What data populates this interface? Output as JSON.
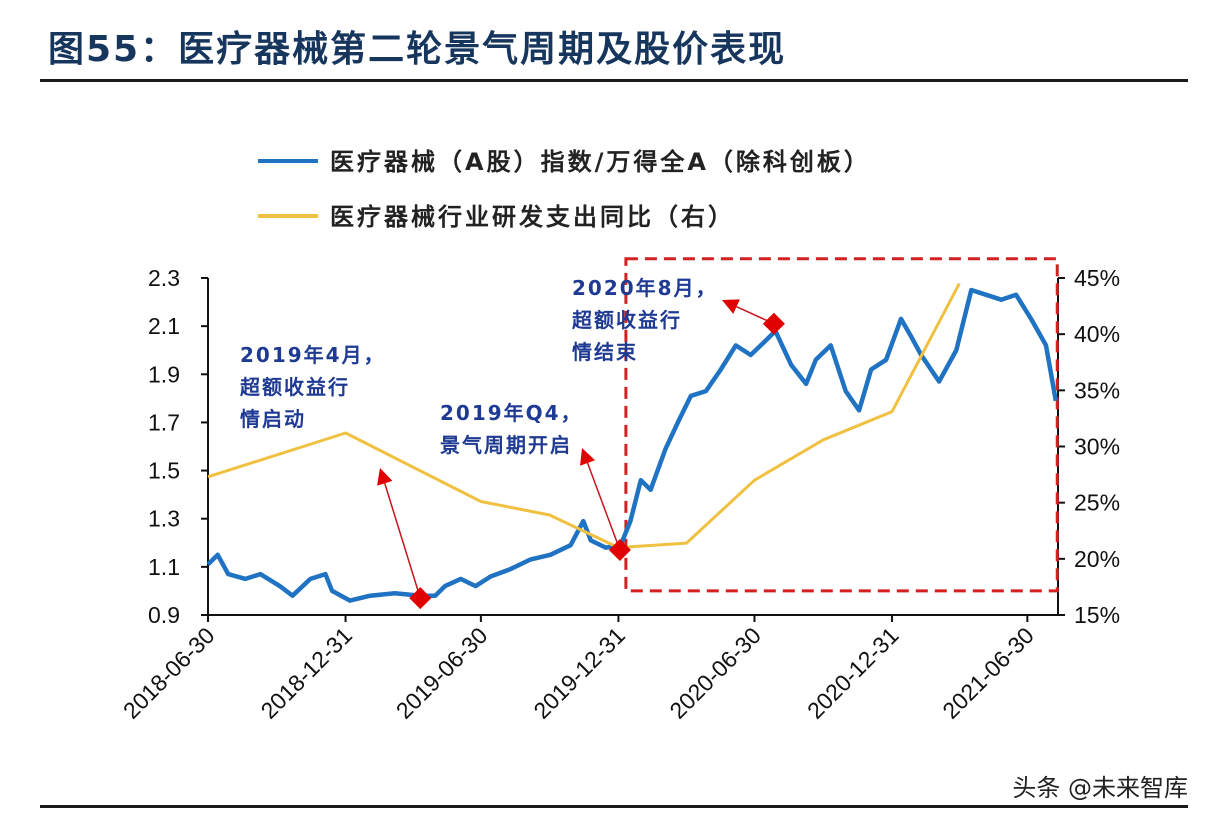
{
  "title": "图55：医疗器械第二轮景气周期及股价表现",
  "watermark": "头条 @未来智库",
  "chart_data": {
    "type": "line",
    "x_type": "date",
    "xlim": [
      "2018-06-30",
      "2021-08-10"
    ],
    "x_ticks": [
      "2018-06-30",
      "2018-12-31",
      "2019-06-30",
      "2019-12-31",
      "2020-06-30",
      "2020-12-31",
      "2021-06-30"
    ],
    "y_left": {
      "lim": [
        0.9,
        2.3
      ],
      "ticks": [
        "0.9",
        "1.1",
        "1.3",
        "1.5",
        "1.7",
        "1.9",
        "2.1",
        "2.3"
      ]
    },
    "y_right": {
      "lim": [
        15,
        45
      ],
      "ticks": [
        "15%",
        "20%",
        "25%",
        "30%",
        "35%",
        "40%",
        "45%"
      ]
    },
    "grid": false,
    "legend_placement": "top",
    "series": [
      {
        "name": "医疗器械（A股）指数/万得全A（除科创板）",
        "axis": "left",
        "color": "#1f73c2",
        "x": [
          "2018-06-30",
          "2018-07-13",
          "2018-07-27",
          "2018-08-19",
          "2018-09-08",
          "2018-10-04",
          "2018-10-21",
          "2018-11-14",
          "2018-12-04",
          "2018-12-13",
          "2019-01-06",
          "2019-02-02",
          "2019-03-07",
          "2019-04-10",
          "2019-04-30",
          "2019-05-13",
          "2019-06-03",
          "2019-06-23",
          "2019-07-13",
          "2019-08-08",
          "2019-09-04",
          "2019-10-01",
          "2019-10-28",
          "2019-11-14",
          "2019-11-24",
          "2019-12-14",
          "2020-01-03",
          "2020-01-16",
          "2020-01-30",
          "2020-02-12",
          "2020-03-03",
          "2020-03-21",
          "2020-04-06",
          "2020-04-26",
          "2020-05-16",
          "2020-06-05",
          "2020-06-25",
          "2020-07-15",
          "2020-07-28",
          "2020-08-18",
          "2020-09-07",
          "2020-09-20",
          "2020-10-10",
          "2020-10-30",
          "2020-11-17",
          "2020-12-03",
          "2020-12-23",
          "2021-01-12",
          "2021-01-25",
          "2021-02-08",
          "2021-03-04",
          "2021-03-27",
          "2021-04-16",
          "2021-05-06",
          "2021-05-26",
          "2021-06-15",
          "2021-07-05",
          "2021-07-25",
          "2021-08-07"
        ],
        "y": [
          1.11,
          1.15,
          1.07,
          1.05,
          1.07,
          1.02,
          0.98,
          1.05,
          1.07,
          1.0,
          0.96,
          0.98,
          0.99,
          0.98,
          0.98,
          1.02,
          1.05,
          1.02,
          1.06,
          1.09,
          1.13,
          1.15,
          1.19,
          1.29,
          1.21,
          1.18,
          1.19,
          1.29,
          1.46,
          1.42,
          1.59,
          1.71,
          1.81,
          1.83,
          1.92,
          2.02,
          1.98,
          2.04,
          2.08,
          1.94,
          1.86,
          1.96,
          2.02,
          1.83,
          1.75,
          1.92,
          1.96,
          2.13,
          2.06,
          1.98,
          1.87,
          2.0,
          2.25,
          2.23,
          2.21,
          2.23,
          2.13,
          2.02,
          1.79
        ]
      },
      {
        "name": "医疗器械行业研发支出同比（右）",
        "axis": "right",
        "color": "#f0c040",
        "x": [
          "2018-06-30",
          "2018-12-31",
          "2019-06-30",
          "2019-09-30",
          "2019-12-31",
          "2020-03-31",
          "2020-06-30",
          "2020-09-30",
          "2020-12-31",
          "2021-03-31"
        ],
        "y": [
          27.3,
          31.2,
          25.1,
          23.9,
          21.0,
          21.4,
          27.0,
          30.6,
          33.1,
          44.5
        ]
      }
    ],
    "annotations": [
      {
        "lines": [
          "2019年4月，",
          "超额收益行",
          "情启动"
        ],
        "marker_x": "2019-04-10",
        "marker_y": 0.97
      },
      {
        "lines": [
          "2019年Q4，",
          "景气周期开启"
        ],
        "marker_x": "2020-01-02",
        "marker_y": 1.17
      },
      {
        "lines": [
          "2020年8月，",
          "超额收益行",
          "情结束"
        ],
        "marker_x": "2020-07-26",
        "marker_y": 2.11
      }
    ],
    "highlight_box": {
      "from": "2020-01-10",
      "to": "2021-08-09",
      "y_from": 1.0,
      "y_to": 2.38,
      "color": "#d42020"
    },
    "marker_color": "#e00000"
  }
}
